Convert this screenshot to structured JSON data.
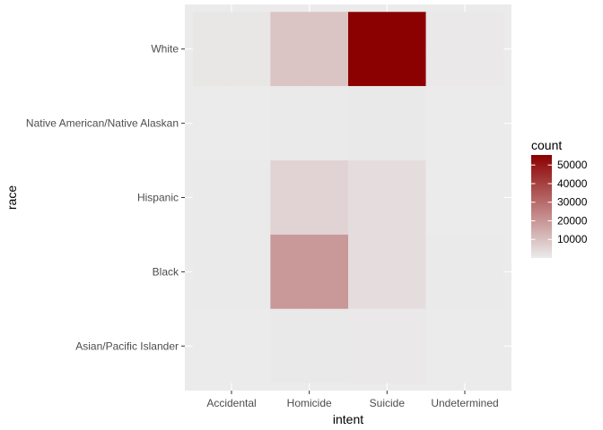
{
  "chart_data": {
    "type": "heatmap",
    "xlabel": "intent",
    "ylabel": "race",
    "x_categories": [
      "Accidental",
      "Homicide",
      "Suicide",
      "Undetermined"
    ],
    "y_categories": [
      "White",
      "Native American/Native Alaskan",
      "Hispanic",
      "Black",
      "Asian/Pacific Islander"
    ],
    "cells": [
      {
        "race": "White",
        "intent": "Accidental",
        "count": 1100
      },
      {
        "race": "White",
        "intent": "Homicide",
        "count": 9100
      },
      {
        "race": "White",
        "intent": "Suicide",
        "count": 55400
      },
      {
        "race": "White",
        "intent": "Undetermined",
        "count": 600
      },
      {
        "race": "Native American/Native Alaskan",
        "intent": "Accidental",
        "count": 20
      },
      {
        "race": "Native American/Native Alaskan",
        "intent": "Homicide",
        "count": 300
      },
      {
        "race": "Native American/Native Alaskan",
        "intent": "Suicide",
        "count": 500
      },
      {
        "race": "Native American/Native Alaskan",
        "intent": "Undetermined",
        "count": 10
      },
      {
        "race": "Hispanic",
        "intent": "Accidental",
        "count": 200
      },
      {
        "race": "Hispanic",
        "intent": "Homicide",
        "count": 5600
      },
      {
        "race": "Hispanic",
        "intent": "Suicide",
        "count": 3200
      },
      {
        "race": "Hispanic",
        "intent": "Undetermined",
        "count": 100
      },
      {
        "race": "Black",
        "intent": "Accidental",
        "count": 300
      },
      {
        "race": "Black",
        "intent": "Homicide",
        "count": 19500
      },
      {
        "race": "Black",
        "intent": "Suicide",
        "count": 3300
      },
      {
        "race": "Black",
        "intent": "Undetermined",
        "count": 300
      },
      {
        "race": "Asian/Pacific Islander",
        "intent": "Accidental",
        "count": 10
      },
      {
        "race": "Asian/Pacific Islander",
        "intent": "Homicide",
        "count": 500
      },
      {
        "race": "Asian/Pacific Islander",
        "intent": "Suicide",
        "count": 700
      },
      {
        "race": "Asian/Pacific Islander",
        "intent": "Undetermined",
        "count": 20
      }
    ],
    "legend": {
      "title": "count",
      "breaks": [
        10000,
        20000,
        30000,
        40000,
        50000
      ],
      "labels": [
        "10000",
        "20000",
        "30000",
        "40000",
        "50000"
      ],
      "range": [
        0,
        55400
      ],
      "placement": "right"
    },
    "colors": {
      "low": "#ebebeb",
      "high": "#8b0000",
      "panel_background": "#ebebeb",
      "grid": "#ffffff"
    },
    "grid": true
  }
}
